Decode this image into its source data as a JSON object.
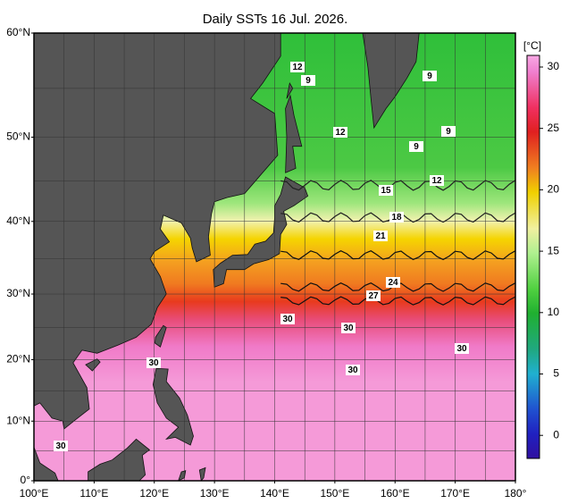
{
  "title": "Daily SSTs 16 Jul. 2026.",
  "map": {
    "lat_labels": [
      "60°N",
      "50°N",
      "40°N",
      "30°N",
      "20°N",
      "10°N",
      "0°"
    ],
    "lon_labels": [
      "100°E",
      "110°E",
      "120°E",
      "130°E",
      "140°E",
      "150°E",
      "160°E",
      "170°E",
      "180°"
    ]
  },
  "colorbar": {
    "unit": "[°C]",
    "labels": [
      "30",
      "25",
      "20",
      "15",
      "10",
      "5",
      "0"
    ]
  },
  "contours": {
    "labels": [
      "12",
      "9",
      "9",
      "12",
      "9",
      "9",
      "12",
      "15",
      "18",
      "21",
      "24",
      "27",
      "30",
      "30",
      "30",
      "30",
      "30",
      "30"
    ]
  }
}
